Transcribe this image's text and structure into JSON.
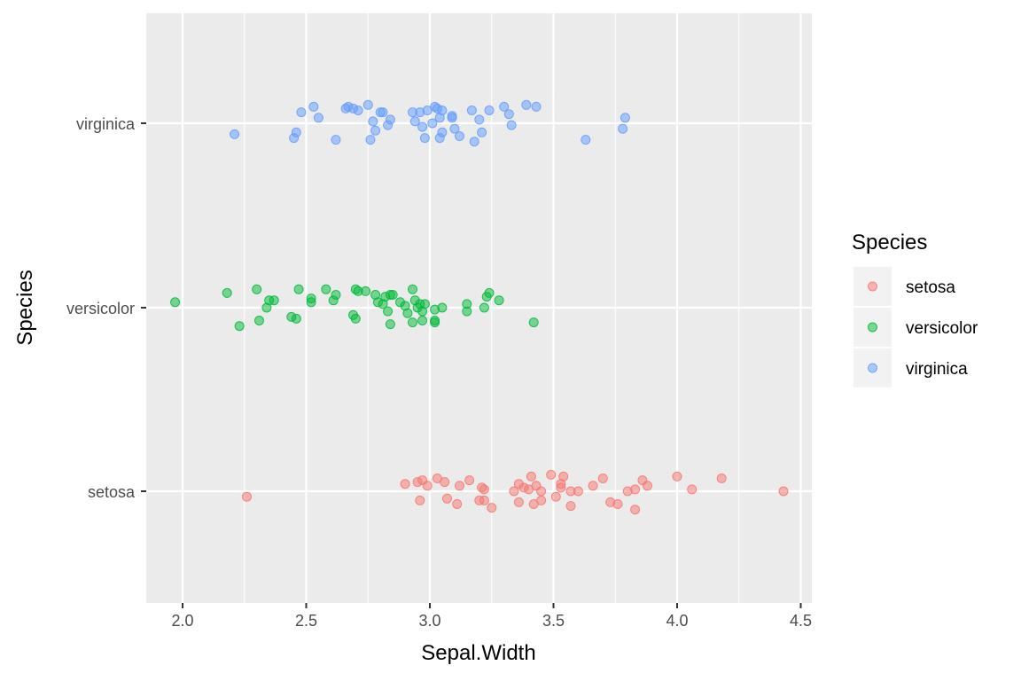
{
  "chart_data": {
    "type": "scatter",
    "xlabel": "Sepal.Width",
    "ylabel": "Species",
    "xlim": [
      1.85,
      4.55
    ],
    "x_ticks": [
      2.0,
      2.5,
      3.0,
      3.5,
      4.0,
      4.5
    ],
    "x_tick_labels": [
      "2.0",
      "2.5",
      "3.0",
      "3.5",
      "4.0",
      "4.5"
    ],
    "categories": [
      "setosa",
      "versicolor",
      "virginica"
    ],
    "grid": true,
    "point_alpha": 0.5,
    "legend": {
      "title": "Species",
      "position": "right"
    },
    "series": [
      {
        "name": "setosa",
        "color": "#F8766D",
        "points": [
          [
            2.26,
            -0.03
          ],
          [
            2.9,
            0.04
          ],
          [
            2.95,
            0.05
          ],
          [
            2.97,
            0.06
          ],
          [
            2.99,
            0.03
          ],
          [
            3.03,
            0.07
          ],
          [
            3.06,
            0.05
          ],
          [
            3.12,
            0.03
          ],
          [
            3.16,
            0.06
          ],
          [
            3.21,
            0.02
          ],
          [
            3.22,
            0.01
          ],
          [
            3.34,
            0.0
          ],
          [
            3.36,
            0.04
          ],
          [
            3.38,
            0.02
          ],
          [
            3.4,
            0.01
          ],
          [
            3.41,
            0.08
          ],
          [
            3.43,
            0.03
          ],
          [
            3.45,
            0.0
          ],
          [
            3.49,
            0.09
          ],
          [
            3.53,
            0.02
          ],
          [
            3.53,
            0.04
          ],
          [
            3.54,
            0.08
          ],
          [
            3.57,
            0.0
          ],
          [
            3.6,
            0.0
          ],
          [
            3.66,
            0.03
          ],
          [
            3.7,
            0.07
          ],
          [
            3.8,
            0.0
          ],
          [
            3.83,
            0.01
          ],
          [
            3.86,
            0.06
          ],
          [
            3.88,
            0.03
          ],
          [
            4.0,
            0.08
          ],
          [
            4.06,
            0.01
          ],
          [
            4.18,
            0.07
          ],
          [
            4.43,
            0.0
          ],
          [
            2.96,
            -0.05
          ],
          [
            3.07,
            -0.04
          ],
          [
            3.11,
            -0.07
          ],
          [
            3.2,
            -0.05
          ],
          [
            3.22,
            -0.05
          ],
          [
            3.25,
            -0.09
          ],
          [
            3.36,
            -0.06
          ],
          [
            3.42,
            -0.07
          ],
          [
            3.45,
            -0.05
          ],
          [
            3.51,
            -0.03
          ],
          [
            3.57,
            -0.08
          ],
          [
            3.73,
            -0.06
          ],
          [
            3.76,
            -0.07
          ],
          [
            3.83,
            -0.1
          ]
        ]
      },
      {
        "name": "versicolor",
        "color": "#00BA38",
        "points": [
          [
            1.97,
            0.03
          ],
          [
            2.18,
            0.08
          ],
          [
            2.23,
            -0.1
          ],
          [
            2.3,
            0.1
          ],
          [
            2.31,
            -0.07
          ],
          [
            2.34,
            0.0
          ],
          [
            2.35,
            0.04
          ],
          [
            2.37,
            0.04
          ],
          [
            2.44,
            -0.05
          ],
          [
            2.46,
            -0.06
          ],
          [
            2.47,
            0.1
          ],
          [
            2.52,
            0.05
          ],
          [
            2.52,
            0.03
          ],
          [
            2.58,
            0.1
          ],
          [
            2.61,
            0.04
          ],
          [
            2.62,
            0.07
          ],
          [
            2.69,
            -0.04
          ],
          [
            2.7,
            0.1
          ],
          [
            2.7,
            -0.06
          ],
          [
            2.71,
            0.09
          ],
          [
            2.74,
            0.09
          ],
          [
            2.78,
            0.07
          ],
          [
            2.79,
            0.03
          ],
          [
            2.81,
            0.02
          ],
          [
            2.82,
            0.06
          ],
          [
            2.83,
            -0.02
          ],
          [
            2.84,
            0.07
          ],
          [
            2.84,
            -0.09
          ],
          [
            2.85,
            0.07
          ],
          [
            2.88,
            0.03
          ],
          [
            2.9,
            0.01
          ],
          [
            2.91,
            -0.03
          ],
          [
            2.93,
            0.1
          ],
          [
            2.93,
            -0.08
          ],
          [
            2.94,
            0.04
          ],
          [
            2.95,
            0.0
          ],
          [
            2.96,
            0.02
          ],
          [
            2.97,
            -0.02
          ],
          [
            2.97,
            -0.07
          ],
          [
            2.98,
            0.02
          ],
          [
            3.02,
            -0.01
          ],
          [
            3.02,
            -0.08
          ],
          [
            3.02,
            -0.07
          ],
          [
            3.05,
            0.0
          ],
          [
            3.15,
            0.02
          ],
          [
            3.15,
            -0.02
          ],
          [
            3.22,
            0.0
          ],
          [
            3.23,
            0.06
          ],
          [
            3.24,
            0.08
          ],
          [
            3.28,
            0.04
          ],
          [
            3.42,
            -0.08
          ]
        ]
      },
      {
        "name": "virginica",
        "color": "#619CFF",
        "points": [
          [
            2.21,
            -0.06
          ],
          [
            2.45,
            -0.08
          ],
          [
            2.46,
            -0.05
          ],
          [
            2.48,
            0.06
          ],
          [
            2.53,
            0.09
          ],
          [
            2.55,
            0.03
          ],
          [
            2.62,
            -0.09
          ],
          [
            2.66,
            0.08
          ],
          [
            2.67,
            0.09
          ],
          [
            2.69,
            0.08
          ],
          [
            2.71,
            0.07
          ],
          [
            2.75,
            0.1
          ],
          [
            2.76,
            -0.09
          ],
          [
            2.77,
            0.01
          ],
          [
            2.78,
            -0.04
          ],
          [
            2.8,
            0.06
          ],
          [
            2.81,
            0.06
          ],
          [
            2.83,
            -0.01
          ],
          [
            2.84,
            0.02
          ],
          [
            2.93,
            0.06
          ],
          [
            2.94,
            0.01
          ],
          [
            2.96,
            0.06
          ],
          [
            2.97,
            -0.02
          ],
          [
            2.98,
            -0.08
          ],
          [
            2.99,
            0.07
          ],
          [
            3.01,
            0.0
          ],
          [
            3.02,
            0.09
          ],
          [
            3.03,
            0.08
          ],
          [
            3.04,
            0.03
          ],
          [
            3.04,
            -0.08
          ],
          [
            3.05,
            0.07
          ],
          [
            3.05,
            -0.05
          ],
          [
            3.09,
            0.04
          ],
          [
            3.09,
            0.03
          ],
          [
            3.1,
            -0.03
          ],
          [
            3.12,
            -0.07
          ],
          [
            3.17,
            0.07
          ],
          [
            3.18,
            -0.1
          ],
          [
            3.2,
            0.02
          ],
          [
            3.21,
            -0.05
          ],
          [
            3.24,
            0.07
          ],
          [
            3.3,
            0.09
          ],
          [
            3.32,
            0.05
          ],
          [
            3.33,
            -0.01
          ],
          [
            3.39,
            0.1
          ],
          [
            3.43,
            0.09
          ],
          [
            3.63,
            -0.09
          ],
          [
            3.78,
            -0.03
          ],
          [
            3.79,
            0.03
          ]
        ]
      }
    ]
  }
}
